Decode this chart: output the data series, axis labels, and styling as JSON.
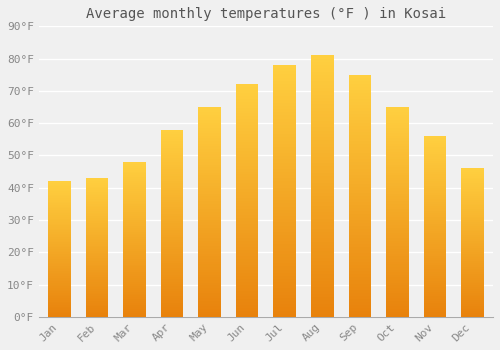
{
  "title": "Average monthly temperatures (°F ) in Kosai",
  "months": [
    "Jan",
    "Feb",
    "Mar",
    "Apr",
    "May",
    "Jun",
    "Jul",
    "Aug",
    "Sep",
    "Oct",
    "Nov",
    "Dec"
  ],
  "values": [
    42,
    43,
    48,
    58,
    65,
    72,
    78,
    81,
    75,
    65,
    56,
    46
  ],
  "color_bottom": "#E8820C",
  "color_top": "#FFD040",
  "ylim": [
    0,
    90
  ],
  "yticks": [
    0,
    10,
    20,
    30,
    40,
    50,
    60,
    70,
    80,
    90
  ],
  "background_color": "#f0f0f0",
  "grid_color": "#ffffff",
  "title_fontsize": 10,
  "tick_fontsize": 8,
  "title_color": "#555555",
  "tick_color": "#888888",
  "bar_width": 0.6,
  "font_family": "monospace"
}
